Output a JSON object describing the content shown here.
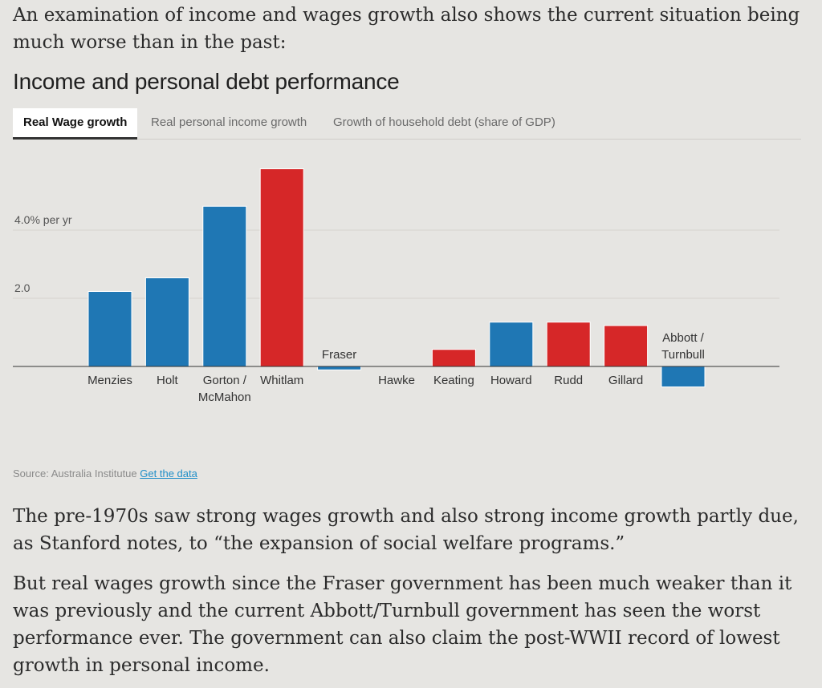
{
  "intro_text": "An examination of income and wages growth also shows the current situation being much worse than in the past:",
  "chart_title": "Income and personal debt performance",
  "tabs": [
    {
      "label": "Real Wage growth",
      "active": true
    },
    {
      "label": "Real personal income growth",
      "active": false
    },
    {
      "label": "Growth of household debt (share of GDP)",
      "active": false
    }
  ],
  "colors": {
    "liberal": "#1f77b4",
    "labor": "#d62728"
  },
  "chart_data": {
    "type": "bar",
    "title": "Income and personal debt performance",
    "ylabel": "",
    "y_unit_label": "% per yr",
    "yticks": [
      {
        "value": 2.0,
        "label": "2.0"
      },
      {
        "value": 4.0,
        "label": "4.0% per yr"
      }
    ],
    "ylim": [
      -1.0,
      5.8
    ],
    "grid": true,
    "categories": [
      "Menzies",
      "Holt",
      "Gorton / McMahon",
      "Whitlam",
      "Fraser",
      "Hawke",
      "Keating",
      "Howard",
      "Rudd",
      "Gillard",
      "Abbott / Turnbull"
    ],
    "category_lines": [
      [
        "Menzies"
      ],
      [
        "Holt"
      ],
      [
        "Gorton /",
        "McMahon"
      ],
      [
        "Whitlam"
      ],
      [
        "Fraser"
      ],
      [
        "Hawke"
      ],
      [
        "Keating"
      ],
      [
        "Howard"
      ],
      [
        "Rudd"
      ],
      [
        "Gillard"
      ],
      [
        "Abbott /",
        "Turnbull"
      ]
    ],
    "values": [
      2.2,
      2.6,
      4.7,
      5.8,
      -0.1,
      0.0,
      0.5,
      1.3,
      1.3,
      1.2,
      -0.6
    ],
    "party": [
      "liberal",
      "liberal",
      "liberal",
      "labor",
      "liberal",
      "labor",
      "labor",
      "liberal",
      "labor",
      "labor",
      "liberal"
    ]
  },
  "source": {
    "label": "Source: Australia Institutue",
    "link_text": "Get the data"
  },
  "paragraphs": [
    "The pre-1970s saw strong wages growth and also strong income growth partly due, as Stanford notes, to “the expansion of social welfare programs.”",
    "But real wages growth since the Fraser government has been much weaker than it was previously and the current Abbott/Turnbull government has seen the worst performance ever. The government can also claim the post-WWII record of lowest growth in personal income."
  ]
}
